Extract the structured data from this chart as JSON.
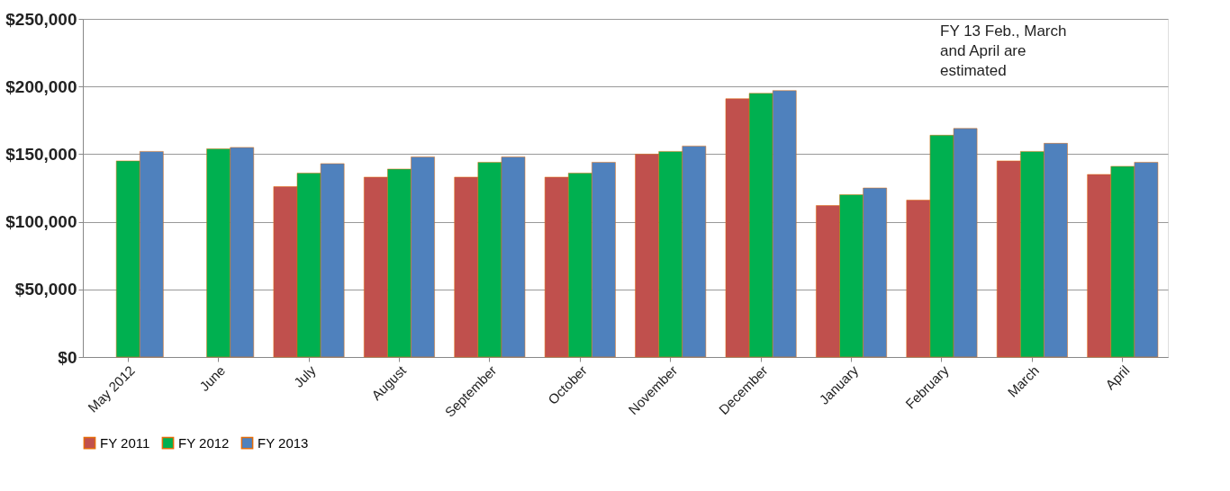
{
  "chart_data": {
    "type": "bar",
    "categories": [
      "May 2012",
      "June",
      "July",
      "August",
      "September",
      "October",
      "November",
      "December",
      "January",
      "February",
      "March",
      "April"
    ],
    "series": [
      {
        "name": "FY 2011",
        "color": "#c0504d",
        "values": [
          null,
          null,
          126000,
          133000,
          133000,
          133000,
          150000,
          191000,
          112000,
          116000,
          145000,
          135000
        ]
      },
      {
        "name": "FY 2012",
        "color": "#00b050",
        "values": [
          145000,
          154000,
          136000,
          139000,
          144000,
          136000,
          152000,
          195000,
          120000,
          164000,
          152000,
          141000
        ]
      },
      {
        "name": "FY 2013",
        "color": "#4f81bd",
        "values": [
          152000,
          155000,
          143000,
          148000,
          148000,
          144000,
          156000,
          197000,
          125000,
          169000,
          158000,
          144000
        ]
      }
    ],
    "ylim": [
      0,
      250000
    ],
    "yticks": [
      {
        "value": 0,
        "label": "$0"
      },
      {
        "value": 50000,
        "label": "$50,000"
      },
      {
        "value": 100000,
        "label": "$100,000"
      },
      {
        "value": 150000,
        "label": "$150,000"
      },
      {
        "value": 200000,
        "label": "$200,000"
      },
      {
        "value": 250000,
        "label": "$250,000"
      }
    ],
    "grid": "y",
    "legend": "bottom",
    "annotations": [
      "FY 13 Feb., March and April are estimated"
    ]
  }
}
